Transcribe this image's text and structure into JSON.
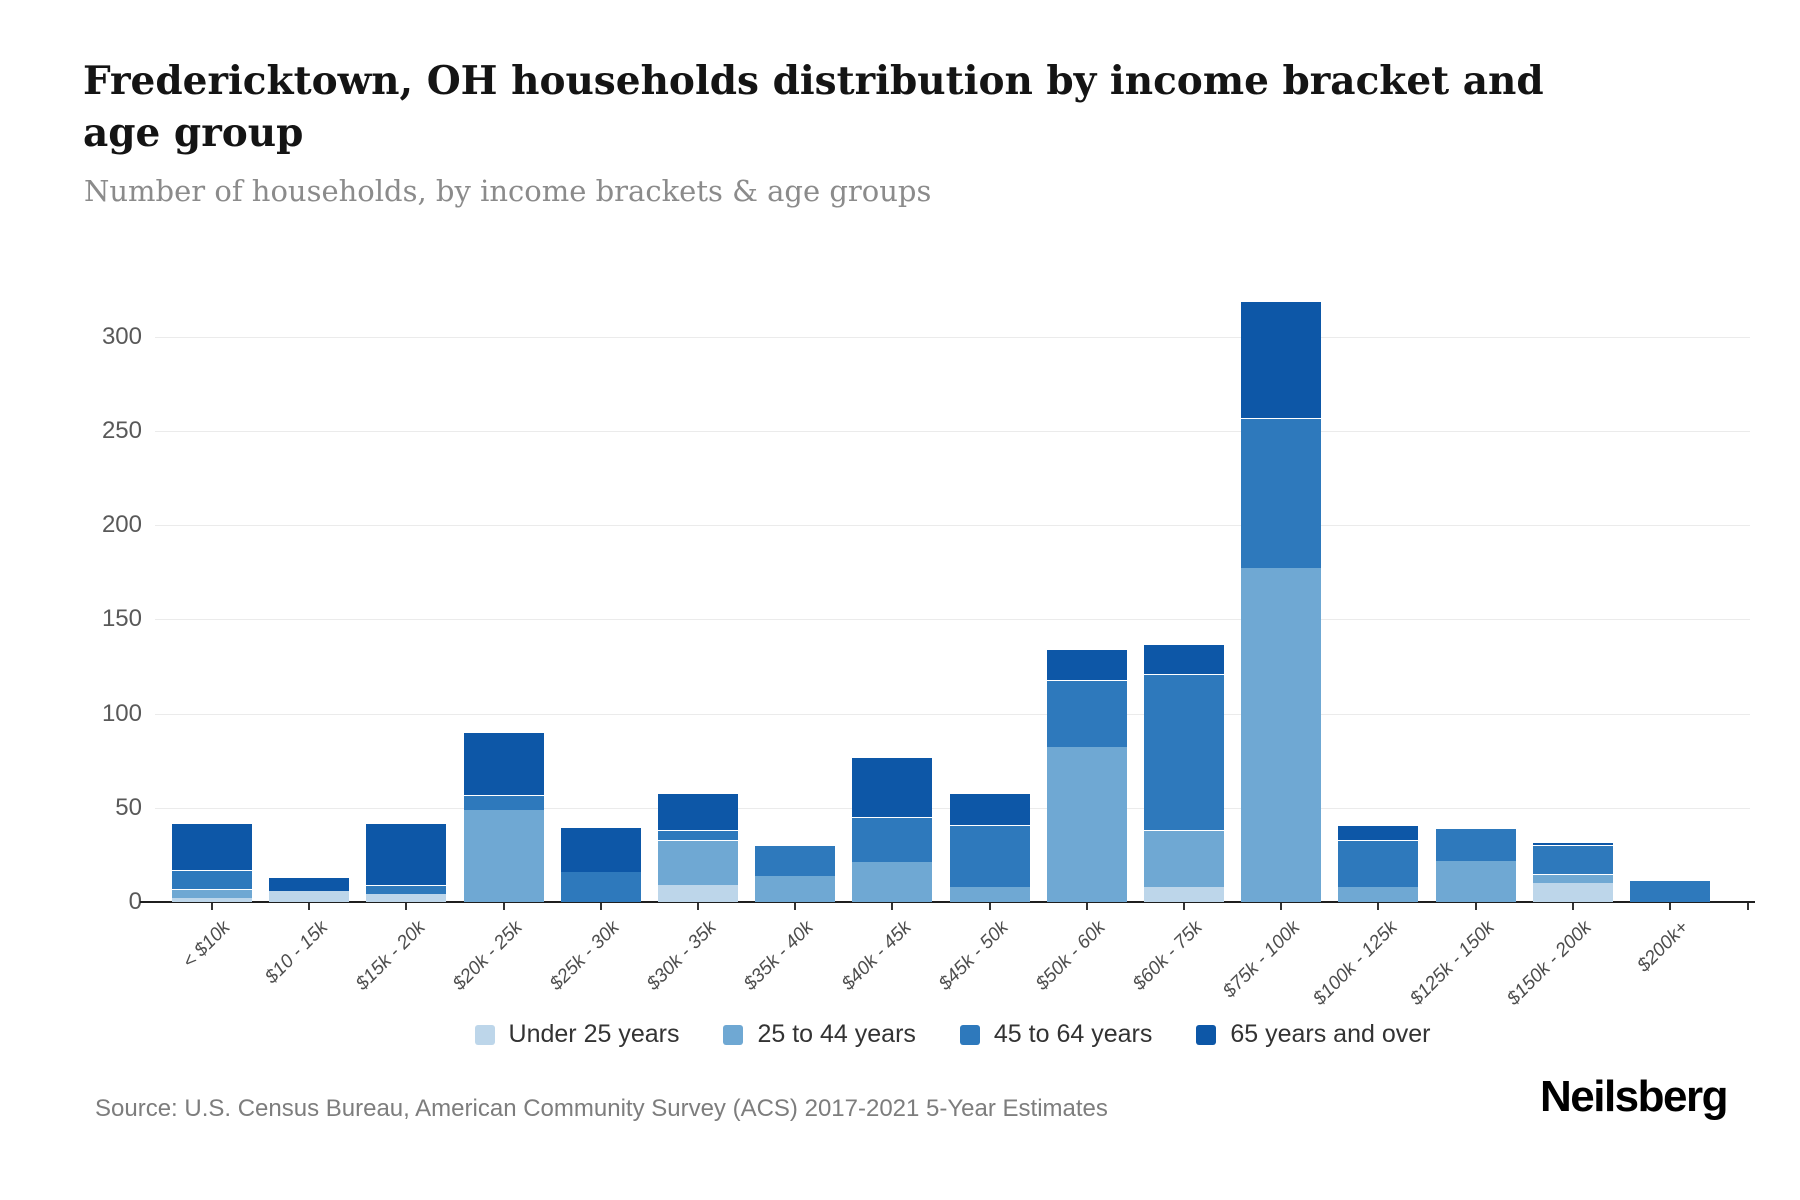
{
  "header": {
    "title_line1": "Fredericktown, OH households distribution by income bracket and",
    "title_line2": "age group",
    "subtitle": "Number of households, by income brackets & age groups"
  },
  "chart_data": {
    "type": "bar",
    "stacked": true,
    "title": "Fredericktown, OH households distribution by income bracket and age group",
    "xlabel": "",
    "ylabel": "Number of households",
    "ylim": [
      0,
      320
    ],
    "yticks": [
      0,
      50,
      100,
      150,
      200,
      250,
      300
    ],
    "grid": true,
    "legend_position": "bottom",
    "categories": [
      "< $10k",
      "$10 - 15k",
      "$15k - 20k",
      "$20k - 25k",
      "$25k - 30k",
      "$30k - 35k",
      "$35k - 40k",
      "$40k - 45k",
      "$45k - 50k",
      "$50k - 60k",
      "$60k - 75k",
      "$75k - 100k",
      "$100k - 125k",
      "$125k - 150k",
      "$150k - 200k",
      "$200k+"
    ],
    "series": [
      {
        "name": "Under 25 years",
        "color": "#bdd6ea",
        "values": [
          2,
          6,
          4,
          0,
          0,
          9,
          0,
          0,
          0,
          0,
          8,
          0,
          0,
          0,
          10,
          0
        ]
      },
      {
        "name": "25 to 44 years",
        "color": "#6fa8d3",
        "values": [
          5,
          0,
          0,
          49,
          0,
          24,
          14,
          21,
          8,
          82,
          30,
          177,
          8,
          22,
          5,
          0
        ]
      },
      {
        "name": "45 to 64 years",
        "color": "#2e79bc",
        "values": [
          10,
          0,
          5,
          8,
          16,
          5,
          16,
          24,
          33,
          36,
          83,
          80,
          25,
          17,
          15,
          11
        ]
      },
      {
        "name": "65 years and over",
        "color": "#0d57a7",
        "values": [
          25,
          7,
          33,
          33,
          24,
          20,
          0,
          32,
          17,
          16,
          16,
          62,
          8,
          0,
          2,
          0
        ]
      }
    ]
  },
  "footer": {
    "source": "Source: U.S. Census Bureau, American Community Survey (ACS) 2017-2021 5-Year Estimates",
    "brand": "Neilsberg"
  }
}
